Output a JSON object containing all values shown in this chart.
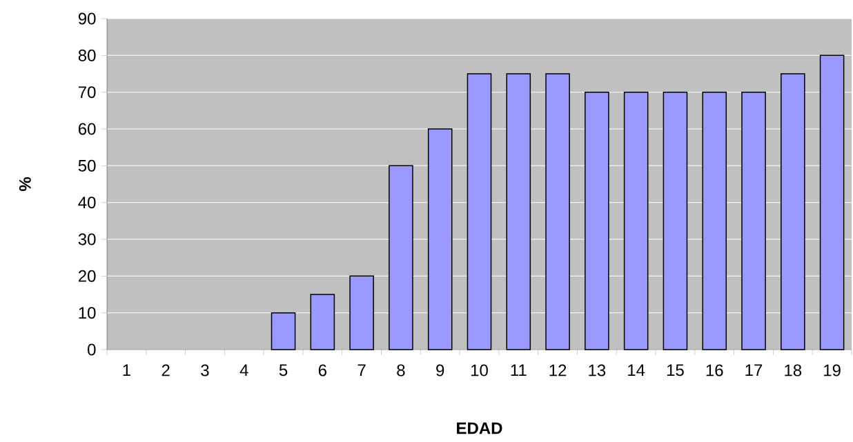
{
  "chart_data": {
    "type": "bar",
    "xlabel": "EDAD",
    "ylabel": "%",
    "categories": [
      "1",
      "2",
      "3",
      "4",
      "5",
      "6",
      "7",
      "8",
      "9",
      "10",
      "11",
      "12",
      "13",
      "14",
      "15",
      "16",
      "17",
      "18",
      "19"
    ],
    "values": [
      0,
      0,
      0,
      0,
      10,
      15,
      20,
      50,
      60,
      75,
      75,
      75,
      70,
      70,
      70,
      70,
      70,
      75,
      80
    ],
    "color": "#9999ff",
    "ylim": [
      0,
      90
    ],
    "yticks": [
      0,
      10,
      20,
      30,
      40,
      50,
      60,
      70,
      80,
      90
    ],
    "grid": "y"
  }
}
